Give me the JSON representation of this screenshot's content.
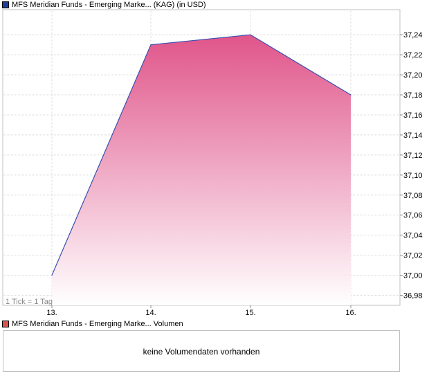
{
  "price_legend": {
    "label": "MFS Meridian Funds - Emerging Marke... (KAG) (in USD)",
    "swatch_color": "#1f3f9a"
  },
  "tick_note": "1 Tick = 1 Tag",
  "volume_legend": {
    "label": "MFS Meridian Funds - Emerging Marke... Volumen",
    "swatch_color": "#d9534f"
  },
  "volume_message": "keine Volumendaten vorhanden",
  "colors": {
    "line": "#3a4fb0",
    "fill_top": "#e0558a",
    "fill_bottom": "#ffffff",
    "grid": "#d8d8d8",
    "frame": "#c0c0c0"
  },
  "chart_data": {
    "type": "area",
    "x": [
      "13.",
      "14.",
      "15.",
      "16."
    ],
    "series": [
      {
        "values": [
          37.0,
          37.23,
          37.24,
          37.18
        ]
      }
    ],
    "xlabel": "",
    "ylabel": "",
    "ylim": [
      36.97,
      37.265
    ],
    "yticks": [
      36.98,
      37.0,
      37.02,
      37.04,
      37.06,
      37.08,
      37.1,
      37.12,
      37.14,
      37.16,
      37.18,
      37.2,
      37.22,
      37.24
    ],
    "ytick_labels": [
      "36,98",
      "37,00",
      "37,02",
      "37,04",
      "37,06",
      "37,08",
      "37,10",
      "37,12",
      "37,14",
      "37,16",
      "37,18",
      "37,20",
      "37,22",
      "37,24"
    ],
    "grid": true,
    "y_axis_position": "right"
  }
}
